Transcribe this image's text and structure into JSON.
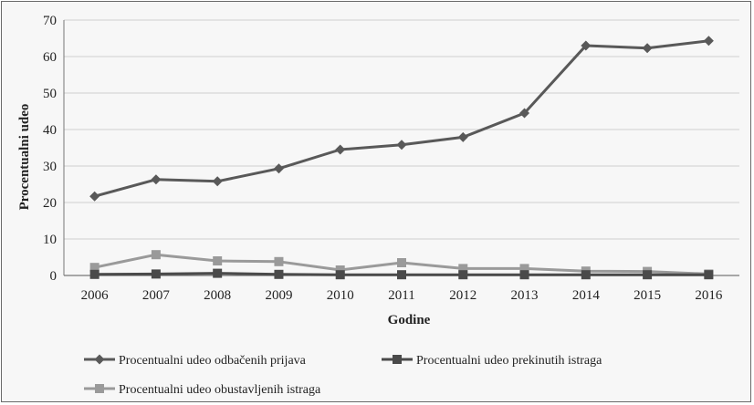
{
  "chart_data": {
    "type": "line",
    "categories": [
      "2006",
      "2007",
      "2008",
      "2009",
      "2010",
      "2011",
      "2012",
      "2013",
      "2014",
      "2015",
      "2016"
    ],
    "series": [
      {
        "name": "Procentualni udeo odbačenih prijava",
        "marker": "diamond",
        "color": "#595959",
        "values": [
          21.7,
          26.3,
          25.8,
          29.3,
          34.5,
          35.8,
          37.9,
          44.5,
          63.0,
          62.3,
          64.3
        ]
      },
      {
        "name": "Procentualni udeo prekinutih istraga",
        "marker": "square",
        "color": "#4a4a4a",
        "values": [
          0.3,
          0.4,
          0.6,
          0.3,
          0.2,
          0.2,
          0.2,
          0.2,
          0.2,
          0.2,
          0.2
        ]
      },
      {
        "name": "Procentualni udeo obustavljenih istraga",
        "marker": "square",
        "color": "#9a9a9a",
        "values": [
          2.2,
          5.7,
          4.0,
          3.8,
          1.5,
          3.5,
          1.9,
          1.9,
          1.2,
          1.1,
          0.4
        ]
      }
    ],
    "xlabel": "Godine",
    "ylabel": "Procentualni udeo",
    "ylim": [
      0,
      70
    ],
    "yticks": [
      "0",
      "10",
      "20",
      "30",
      "40",
      "50",
      "60",
      "70"
    ],
    "grid": true,
    "legend_position": "bottom"
  }
}
